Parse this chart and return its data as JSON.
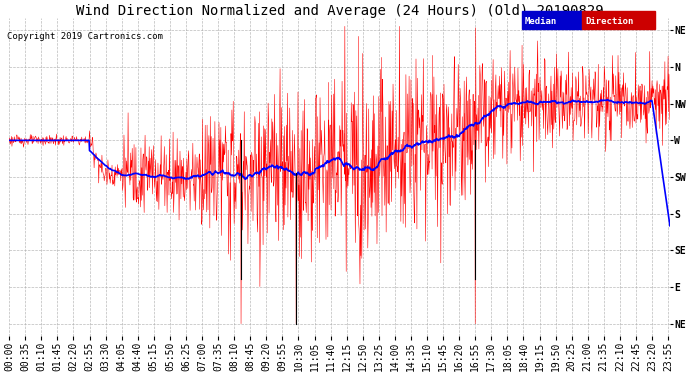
{
  "title": "Wind Direction Normalized and Average (24 Hours) (Old) 20190829",
  "copyright": "Copyright 2019 Cartronics.com",
  "ytick_labels": [
    "NE",
    "N",
    "NW",
    "W",
    "SW",
    "S",
    "SE",
    "E",
    "NE"
  ],
  "ytick_values": [
    405,
    360,
    315,
    270,
    225,
    180,
    135,
    90,
    45
  ],
  "ylim": [
    30,
    420
  ],
  "background_color": "#ffffff",
  "grid_color": "#aaaaaa",
  "red_line_color": "#ff0000",
  "blue_line_color": "#0000ff",
  "black_line_color": "#000000",
  "title_fontsize": 10,
  "copyright_fontsize": 6.5,
  "tick_fontsize": 7,
  "xtick_labels": [
    "00:00",
    "00:35",
    "01:10",
    "01:45",
    "02:20",
    "02:55",
    "03:30",
    "04:05",
    "04:40",
    "05:15",
    "05:50",
    "06:25",
    "07:00",
    "07:35",
    "08:10",
    "08:45",
    "09:20",
    "09:55",
    "10:30",
    "11:05",
    "11:40",
    "12:15",
    "12:50",
    "13:25",
    "14:00",
    "14:35",
    "15:10",
    "15:45",
    "16:20",
    "16:55",
    "17:30",
    "18:05",
    "18:40",
    "19:15",
    "19:50",
    "20:25",
    "21:00",
    "21:35",
    "22:10",
    "22:45",
    "23:20",
    "23:55"
  ]
}
